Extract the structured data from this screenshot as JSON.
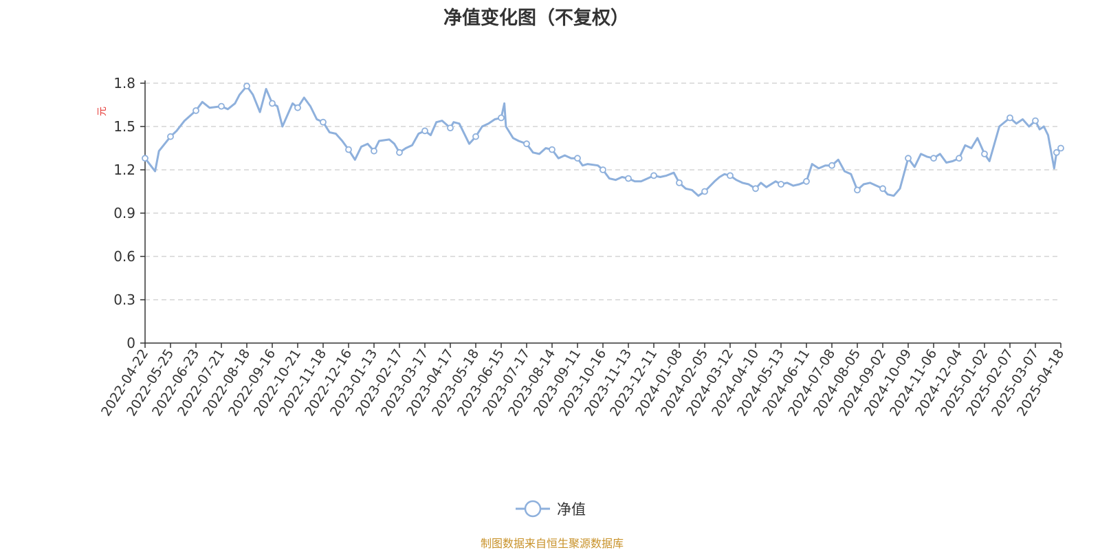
{
  "chart_data": {
    "type": "line",
    "title": "净值变化图（不复权）",
    "ylabel": "元",
    "xlabel": "",
    "ylim": [
      0,
      1.8
    ],
    "yticks": [
      0,
      0.3,
      0.6,
      0.9,
      1.2,
      1.5,
      1.8
    ],
    "ytick_labels": [
      "0",
      "0.3",
      "0.6",
      "0.9",
      "1.2",
      "1.5",
      "1.8"
    ],
    "grid": true,
    "legend_position": "bottom-center",
    "x_tick_labels": [
      "2022-04-22",
      "2022-05-25",
      "2022-06-23",
      "2022-07-21",
      "2022-08-18",
      "2022-09-16",
      "2022-10-21",
      "2022-11-18",
      "2022-12-16",
      "2023-01-13",
      "2023-02-17",
      "2023-03-17",
      "2023-04-17",
      "2023-05-18",
      "2023-06-15",
      "2023-07-17",
      "2023-08-14",
      "2023-09-11",
      "2023-10-16",
      "2023-11-13",
      "2023-12-11",
      "2024-01-08",
      "2024-02-05",
      "2024-03-12",
      "2024-04-10",
      "2024-05-13",
      "2024-06-11",
      "2024-07-08",
      "2024-08-05",
      "2024-09-02",
      "2024-10-09",
      "2024-11-06",
      "2024-12-04",
      "2025-01-02",
      "2025-02-07",
      "2025-03-07",
      "2025-04-18"
    ],
    "series": [
      {
        "name": "净值",
        "color": "#8eb0dc",
        "x": [
          "2022-04-22",
          "2022-05-05",
          "2022-05-10",
          "2022-05-25",
          "2022-06-01",
          "2022-06-10",
          "2022-06-23",
          "2022-06-30",
          "2022-07-08",
          "2022-07-21",
          "2022-07-28",
          "2022-08-05",
          "2022-08-10",
          "2022-08-18",
          "2022-08-25",
          "2022-09-02",
          "2022-09-09",
          "2022-09-16",
          "2022-09-23",
          "2022-09-30",
          "2022-10-14",
          "2022-10-21",
          "2022-10-28",
          "2022-11-04",
          "2022-11-11",
          "2022-11-18",
          "2022-11-25",
          "2022-12-02",
          "2022-12-09",
          "2022-12-16",
          "2022-12-23",
          "2022-12-30",
          "2023-01-06",
          "2023-01-13",
          "2023-01-20",
          "2023-02-03",
          "2023-02-10",
          "2023-02-17",
          "2023-02-24",
          "2023-03-03",
          "2023-03-10",
          "2023-03-17",
          "2023-03-24",
          "2023-03-31",
          "2023-04-07",
          "2023-04-17",
          "2023-04-21",
          "2023-04-28",
          "2023-05-10",
          "2023-05-18",
          "2023-05-25",
          "2023-06-01",
          "2023-06-08",
          "2023-06-15",
          "2023-06-19",
          "2023-06-21",
          "2023-06-30",
          "2023-07-07",
          "2023-07-17",
          "2023-07-24",
          "2023-07-31",
          "2023-08-07",
          "2023-08-14",
          "2023-08-21",
          "2023-08-28",
          "2023-09-04",
          "2023-09-11",
          "2023-09-18",
          "2023-09-25",
          "2023-10-09",
          "2023-10-16",
          "2023-10-23",
          "2023-10-30",
          "2023-11-06",
          "2023-11-13",
          "2023-11-20",
          "2023-11-27",
          "2023-12-04",
          "2023-12-11",
          "2023-12-18",
          "2023-12-25",
          "2024-01-02",
          "2024-01-08",
          "2024-01-15",
          "2024-01-22",
          "2024-01-29",
          "2024-02-05",
          "2024-02-19",
          "2024-02-26",
          "2024-03-04",
          "2024-03-12",
          "2024-03-19",
          "2024-03-26",
          "2024-04-02",
          "2024-04-10",
          "2024-04-17",
          "2024-04-24",
          "2024-05-06",
          "2024-05-13",
          "2024-05-20",
          "2024-05-27",
          "2024-06-03",
          "2024-06-11",
          "2024-06-17",
          "2024-06-24",
          "2024-07-01",
          "2024-07-08",
          "2024-07-15",
          "2024-07-22",
          "2024-07-29",
          "2024-08-05",
          "2024-08-12",
          "2024-08-19",
          "2024-08-26",
          "2024-09-02",
          "2024-09-09",
          "2024-09-18",
          "2024-09-27",
          "2024-10-09",
          "2024-10-16",
          "2024-10-23",
          "2024-10-30",
          "2024-11-06",
          "2024-11-13",
          "2024-11-20",
          "2024-11-27",
          "2024-12-04",
          "2024-12-11",
          "2024-12-18",
          "2024-12-25",
          "2025-01-02",
          "2025-01-09",
          "2025-01-16",
          "2025-01-23",
          "2025-02-07",
          "2025-02-14",
          "2025-02-21",
          "2025-02-28",
          "2025-03-07",
          "2025-03-14",
          "2025-03-21",
          "2025-03-28",
          "2025-04-07",
          "2025-04-11",
          "2025-04-18"
        ],
        "values": [
          1.28,
          1.19,
          1.33,
          1.43,
          1.47,
          1.54,
          1.61,
          1.67,
          1.63,
          1.64,
          1.62,
          1.66,
          1.72,
          1.78,
          1.72,
          1.6,
          1.76,
          1.66,
          1.64,
          1.5,
          1.66,
          1.63,
          1.7,
          1.64,
          1.55,
          1.53,
          1.46,
          1.45,
          1.4,
          1.34,
          1.27,
          1.36,
          1.38,
          1.33,
          1.4,
          1.41,
          1.38,
          1.32,
          1.35,
          1.37,
          1.45,
          1.47,
          1.44,
          1.53,
          1.54,
          1.49,
          1.53,
          1.52,
          1.38,
          1.43,
          1.5,
          1.52,
          1.55,
          1.56,
          1.66,
          1.5,
          1.42,
          1.4,
          1.38,
          1.32,
          1.31,
          1.35,
          1.34,
          1.28,
          1.3,
          1.28,
          1.28,
          1.23,
          1.24,
          1.23,
          1.2,
          1.14,
          1.13,
          1.15,
          1.14,
          1.12,
          1.12,
          1.14,
          1.16,
          1.15,
          1.16,
          1.18,
          1.11,
          1.07,
          1.06,
          1.02,
          1.05,
          1.12,
          1.15,
          1.17,
          1.16,
          1.13,
          1.11,
          1.1,
          1.07,
          1.11,
          1.08,
          1.12,
          1.1,
          1.11,
          1.09,
          1.1,
          1.12,
          1.24,
          1.21,
          1.23,
          1.23,
          1.27,
          1.19,
          1.17,
          1.06,
          1.1,
          1.11,
          1.09,
          1.07,
          1.03,
          1.02,
          1.07,
          1.28,
          1.22,
          1.31,
          1.29,
          1.28,
          1.31,
          1.25,
          1.26,
          1.28,
          1.37,
          1.35,
          1.42,
          1.31,
          1.26,
          1.38,
          1.5,
          1.56,
          1.52,
          1.55,
          1.5,
          1.54,
          1.48,
          1.5,
          1.44,
          1.21,
          1.32,
          1.35
        ],
        "markers": [
          "2022-04-22",
          "2022-05-25",
          "2022-06-23",
          "2022-07-21",
          "2022-08-18",
          "2022-09-16",
          "2022-10-21",
          "2022-11-18",
          "2022-12-16",
          "2023-01-13",
          "2023-02-17",
          "2023-03-17",
          "2023-04-17",
          "2023-05-18",
          "2023-06-15",
          "2023-07-17",
          "2023-08-14",
          "2023-09-11",
          "2023-10-16",
          "2023-11-13",
          "2023-12-11",
          "2024-01-08",
          "2024-02-05",
          "2024-03-12",
          "2024-04-10",
          "2024-05-13",
          "2024-06-11",
          "2024-07-08",
          "2024-08-05",
          "2024-09-02",
          "2024-10-09",
          "2024-11-06",
          "2024-12-04",
          "2025-01-02",
          "2025-02-07",
          "2025-03-07",
          "2025-04-11",
          "2025-04-18"
        ]
      }
    ]
  },
  "footer": {
    "source_text": "制图数据来自恒生聚源数据库"
  }
}
